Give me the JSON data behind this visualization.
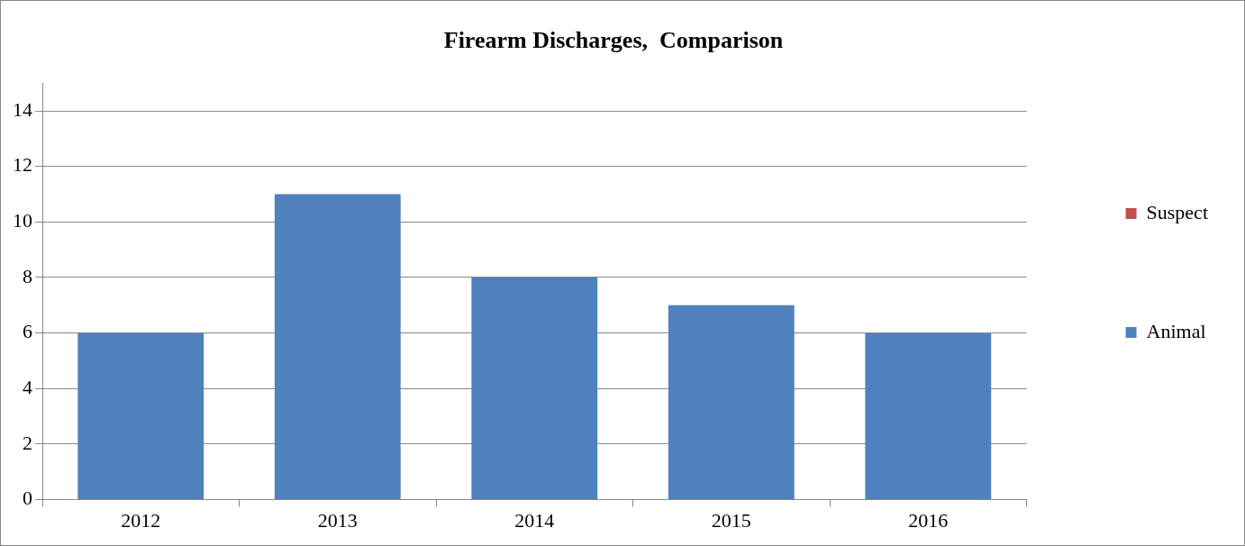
{
  "chart_data": {
    "type": "bar",
    "title": "Firearm Discharges,  Comparison",
    "categories": [
      "2012",
      "2013",
      "2014",
      "2015",
      "2016"
    ],
    "series": [
      {
        "name": "Animal",
        "color": "#4f81bd",
        "values": [
          6,
          11,
          8,
          7,
          6
        ]
      },
      {
        "name": "Suspect",
        "color": "#c0504d",
        "values": [
          0,
          0,
          0,
          0,
          0
        ]
      }
    ],
    "stacked": true,
    "ylim": [
      0,
      15
    ],
    "yticks": [
      0,
      2,
      4,
      6,
      8,
      10,
      12,
      14
    ],
    "grid": "y",
    "legend": "right"
  }
}
